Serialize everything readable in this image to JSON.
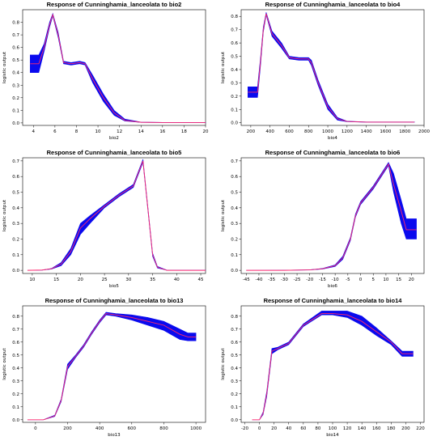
{
  "chart_data": [
    {
      "type": "line",
      "title": "Response of Cunninghamia_lanceolata to bio2",
      "xlabel": "bio2",
      "ylabel": "logistic output",
      "xlim": [
        3,
        20
      ],
      "ylim": [
        -0.02,
        0.9
      ],
      "xticks": [
        4,
        6,
        8,
        10,
        12,
        14,
        16,
        18,
        20
      ],
      "yticks": [
        0,
        0.1,
        0.2,
        0.3,
        0.4,
        0.5,
        0.6,
        0.7,
        0.8
      ],
      "mean_color": "#ff2a6d",
      "band_color": "#0a0aee",
      "mean": [
        [
          3.7,
          0.47
        ],
        [
          4.5,
          0.47
        ],
        [
          5.0,
          0.6
        ],
        [
          5.5,
          0.78
        ],
        [
          5.8,
          0.86
        ],
        [
          6.3,
          0.7
        ],
        [
          6.8,
          0.48
        ],
        [
          7.5,
          0.47
        ],
        [
          8.3,
          0.48
        ],
        [
          8.8,
          0.47
        ],
        [
          9.5,
          0.35
        ],
        [
          10.5,
          0.2
        ],
        [
          11.5,
          0.08
        ],
        [
          12.5,
          0.02
        ],
        [
          14,
          0.005
        ],
        [
          16,
          0.003
        ],
        [
          20,
          0.003
        ]
      ],
      "band_upper": [
        [
          3.7,
          0.54
        ],
        [
          4.5,
          0.54
        ],
        [
          5.0,
          0.63
        ],
        [
          5.5,
          0.8
        ],
        [
          5.8,
          0.87
        ],
        [
          6.3,
          0.72
        ],
        [
          6.8,
          0.49
        ],
        [
          7.5,
          0.48
        ],
        [
          8.3,
          0.49
        ],
        [
          8.8,
          0.48
        ],
        [
          9.5,
          0.38
        ],
        [
          10.5,
          0.23
        ],
        [
          11.5,
          0.1
        ],
        [
          12.5,
          0.03
        ],
        [
          14,
          0.006
        ],
        [
          16,
          0.004
        ],
        [
          20,
          0.004
        ]
      ],
      "band_lower": [
        [
          3.7,
          0.4
        ],
        [
          4.5,
          0.4
        ],
        [
          5.0,
          0.57
        ],
        [
          5.5,
          0.76
        ],
        [
          5.8,
          0.85
        ],
        [
          6.3,
          0.68
        ],
        [
          6.8,
          0.47
        ],
        [
          7.5,
          0.46
        ],
        [
          8.3,
          0.47
        ],
        [
          8.8,
          0.46
        ],
        [
          9.5,
          0.32
        ],
        [
          10.5,
          0.17
        ],
        [
          11.5,
          0.06
        ],
        [
          12.5,
          0.015
        ],
        [
          14,
          0.004
        ],
        [
          16,
          0.002
        ],
        [
          20,
          0.002
        ]
      ]
    },
    {
      "type": "line",
      "title": "Response of Cunninghamia_lanceolata to bio4",
      "xlabel": "bio4",
      "ylabel": "logistic output",
      "xlim": [
        100,
        2000
      ],
      "ylim": [
        -0.02,
        0.85
      ],
      "xticks": [
        200,
        400,
        600,
        800,
        1000,
        1200,
        1400,
        1600,
        1800,
        2000
      ],
      "yticks": [
        0,
        0.1,
        0.2,
        0.3,
        0.4,
        0.5,
        0.6,
        0.7,
        0.8
      ],
      "mean_color": "#ff2a6d",
      "band_color": "#0a0aee",
      "mean": [
        [
          170,
          0.23
        ],
        [
          270,
          0.23
        ],
        [
          300,
          0.45
        ],
        [
          330,
          0.7
        ],
        [
          360,
          0.82
        ],
        [
          420,
          0.67
        ],
        [
          520,
          0.58
        ],
        [
          600,
          0.49
        ],
        [
          700,
          0.48
        ],
        [
          800,
          0.48
        ],
        [
          830,
          0.45
        ],
        [
          900,
          0.3
        ],
        [
          1000,
          0.12
        ],
        [
          1100,
          0.03
        ],
        [
          1200,
          0.01
        ],
        [
          1400,
          0.005
        ],
        [
          1900,
          0.005
        ]
      ],
      "band_upper": [
        [
          170,
          0.27
        ],
        [
          270,
          0.27
        ],
        [
          300,
          0.48
        ],
        [
          330,
          0.72
        ],
        [
          360,
          0.83
        ],
        [
          420,
          0.69
        ],
        [
          520,
          0.6
        ],
        [
          600,
          0.5
        ],
        [
          700,
          0.49
        ],
        [
          800,
          0.49
        ],
        [
          830,
          0.47
        ],
        [
          900,
          0.32
        ],
        [
          1000,
          0.14
        ],
        [
          1100,
          0.04
        ],
        [
          1200,
          0.012
        ],
        [
          1400,
          0.006
        ],
        [
          1900,
          0.006
        ]
      ],
      "band_lower": [
        [
          170,
          0.19
        ],
        [
          270,
          0.19
        ],
        [
          300,
          0.42
        ],
        [
          330,
          0.68
        ],
        [
          360,
          0.81
        ],
        [
          420,
          0.65
        ],
        [
          520,
          0.56
        ],
        [
          600,
          0.48
        ],
        [
          700,
          0.47
        ],
        [
          800,
          0.47
        ],
        [
          830,
          0.43
        ],
        [
          900,
          0.28
        ],
        [
          1000,
          0.1
        ],
        [
          1100,
          0.02
        ],
        [
          1200,
          0.008
        ],
        [
          1400,
          0.004
        ],
        [
          1900,
          0.004
        ]
      ]
    },
    {
      "type": "line",
      "title": "Response of Cunninghamia_lanceolata to bio5",
      "xlabel": "bio5",
      "ylabel": "logistic output",
      "xlim": [
        8,
        46
      ],
      "ylim": [
        -0.02,
        0.72
      ],
      "xticks": [
        10,
        15,
        20,
        25,
        30,
        35,
        40,
        45
      ],
      "yticks": [
        0,
        0.1,
        0.2,
        0.3,
        0.4,
        0.5,
        0.6,
        0.7
      ],
      "mean_color": "#ff2a6d",
      "band_color": "#0a0aee",
      "mean": [
        [
          9,
          0.0
        ],
        [
          12,
          0.002
        ],
        [
          14,
          0.01
        ],
        [
          16,
          0.04
        ],
        [
          18,
          0.12
        ],
        [
          20,
          0.27
        ],
        [
          22,
          0.33
        ],
        [
          25,
          0.41
        ],
        [
          28,
          0.48
        ],
        [
          31,
          0.54
        ],
        [
          33,
          0.7
        ],
        [
          34,
          0.4
        ],
        [
          35,
          0.1
        ],
        [
          36,
          0.02
        ],
        [
          38,
          0.0
        ],
        [
          46,
          0.0
        ]
      ],
      "band_upper": [
        [
          9,
          0.0
        ],
        [
          12,
          0.002
        ],
        [
          14,
          0.012
        ],
        [
          16,
          0.05
        ],
        [
          18,
          0.14
        ],
        [
          20,
          0.3
        ],
        [
          22,
          0.35
        ],
        [
          25,
          0.42
        ],
        [
          28,
          0.49
        ],
        [
          31,
          0.55
        ],
        [
          33,
          0.71
        ],
        [
          34,
          0.41
        ],
        [
          35,
          0.11
        ],
        [
          36,
          0.025
        ],
        [
          38,
          0.001
        ],
        [
          46,
          0.001
        ]
      ],
      "band_lower": [
        [
          9,
          0.0
        ],
        [
          12,
          0.001
        ],
        [
          14,
          0.008
        ],
        [
          16,
          0.03
        ],
        [
          18,
          0.1
        ],
        [
          20,
          0.23
        ],
        [
          22,
          0.3
        ],
        [
          25,
          0.4
        ],
        [
          28,
          0.47
        ],
        [
          31,
          0.53
        ],
        [
          33,
          0.69
        ],
        [
          34,
          0.39
        ],
        [
          35,
          0.09
        ],
        [
          36,
          0.015
        ],
        [
          38,
          0.0
        ],
        [
          46,
          0.0
        ]
      ]
    },
    {
      "type": "line",
      "title": "Response of Cunninghamia_lanceolata to bio6",
      "xlabel": "bio6",
      "ylabel": "logistic output",
      "xlim": [
        -47,
        25
      ],
      "ylim": [
        -0.02,
        0.72
      ],
      "xticks": [
        -45,
        -40,
        -35,
        -30,
        -25,
        -20,
        -15,
        -10,
        -5,
        0,
        5,
        10,
        15,
        20
      ],
      "yticks": [
        0,
        0.1,
        0.2,
        0.3,
        0.4,
        0.5,
        0.6,
        0.7
      ],
      "mean_color": "#ff2a6d",
      "band_color": "#0a0aee",
      "mean": [
        [
          -45,
          0.0
        ],
        [
          -30,
          0.0
        ],
        [
          -20,
          0.003
        ],
        [
          -15,
          0.01
        ],
        [
          -10,
          0.03
        ],
        [
          -7,
          0.08
        ],
        [
          -4,
          0.2
        ],
        [
          -2,
          0.35
        ],
        [
          0,
          0.43
        ],
        [
          5,
          0.53
        ],
        [
          9,
          0.63
        ],
        [
          11,
          0.68
        ],
        [
          13,
          0.55
        ],
        [
          16,
          0.38
        ],
        [
          18,
          0.26
        ],
        [
          22,
          0.26
        ]
      ],
      "band_upper": [
        [
          -45,
          0.0
        ],
        [
          -30,
          0.001
        ],
        [
          -20,
          0.004
        ],
        [
          -15,
          0.012
        ],
        [
          -10,
          0.035
        ],
        [
          -7,
          0.09
        ],
        [
          -4,
          0.21
        ],
        [
          -2,
          0.36
        ],
        [
          0,
          0.44
        ],
        [
          5,
          0.54
        ],
        [
          9,
          0.64
        ],
        [
          11,
          0.69
        ],
        [
          13,
          0.62
        ],
        [
          16,
          0.45
        ],
        [
          18,
          0.33
        ],
        [
          22,
          0.33
        ]
      ],
      "band_lower": [
        [
          -45,
          0.0
        ],
        [
          -30,
          0.0
        ],
        [
          -20,
          0.002
        ],
        [
          -15,
          0.008
        ],
        [
          -10,
          0.025
        ],
        [
          -7,
          0.07
        ],
        [
          -4,
          0.19
        ],
        [
          -2,
          0.34
        ],
        [
          0,
          0.42
        ],
        [
          5,
          0.52
        ],
        [
          9,
          0.62
        ],
        [
          11,
          0.67
        ],
        [
          13,
          0.5
        ],
        [
          16,
          0.3
        ],
        [
          18,
          0.2
        ],
        [
          22,
          0.2
        ]
      ]
    },
    {
      "type": "line",
      "title": "Response of Cunninghamia_lanceolata to bio13",
      "xlabel": "bio13",
      "ylabel": "logistic output",
      "xlim": [
        -80,
        1060
      ],
      "ylim": [
        -0.02,
        0.88
      ],
      "xticks": [
        0,
        200,
        400,
        600,
        800,
        1000
      ],
      "yticks": [
        0,
        0.1,
        0.2,
        0.3,
        0.4,
        0.5,
        0.6,
        0.7,
        0.8
      ],
      "mean_color": "#ff2a6d",
      "band_color": "#0a0aee",
      "mean": [
        [
          -50,
          0.0
        ],
        [
          50,
          0.0
        ],
        [
          120,
          0.03
        ],
        [
          160,
          0.15
        ],
        [
          200,
          0.41
        ],
        [
          250,
          0.49
        ],
        [
          300,
          0.57
        ],
        [
          350,
          0.67
        ],
        [
          400,
          0.76
        ],
        [
          440,
          0.82
        ],
        [
          500,
          0.81
        ],
        [
          600,
          0.79
        ],
        [
          700,
          0.76
        ],
        [
          800,
          0.73
        ],
        [
          900,
          0.66
        ],
        [
          950,
          0.64
        ],
        [
          1000,
          0.64
        ]
      ],
      "band_upper": [
        [
          -50,
          0.0
        ],
        [
          50,
          0.001
        ],
        [
          120,
          0.035
        ],
        [
          160,
          0.16
        ],
        [
          200,
          0.43
        ],
        [
          250,
          0.5
        ],
        [
          300,
          0.58
        ],
        [
          350,
          0.68
        ],
        [
          400,
          0.77
        ],
        [
          440,
          0.83
        ],
        [
          500,
          0.82
        ],
        [
          600,
          0.81
        ],
        [
          700,
          0.79
        ],
        [
          800,
          0.76
        ],
        [
          900,
          0.7
        ],
        [
          950,
          0.67
        ],
        [
          1000,
          0.67
        ]
      ],
      "band_lower": [
        [
          -50,
          0.0
        ],
        [
          50,
          0.0
        ],
        [
          120,
          0.025
        ],
        [
          160,
          0.14
        ],
        [
          200,
          0.39
        ],
        [
          250,
          0.48
        ],
        [
          300,
          0.56
        ],
        [
          350,
          0.66
        ],
        [
          400,
          0.75
        ],
        [
          440,
          0.81
        ],
        [
          500,
          0.8
        ],
        [
          600,
          0.77
        ],
        [
          700,
          0.73
        ],
        [
          800,
          0.69
        ],
        [
          900,
          0.62
        ],
        [
          950,
          0.61
        ],
        [
          1000,
          0.61
        ]
      ]
    },
    {
      "type": "line",
      "title": "Response of Cunninghamia_lanceolata to bio14",
      "xlabel": "bio14",
      "ylabel": "logistic output",
      "xlim": [
        -25,
        225
      ],
      "ylim": [
        -0.02,
        0.88
      ],
      "xticks": [
        -20,
        0,
        20,
        40,
        60,
        80,
        100,
        120,
        140,
        160,
        180,
        200,
        220
      ],
      "yticks": [
        0,
        0.1,
        0.2,
        0.3,
        0.4,
        0.5,
        0.6,
        0.7,
        0.8
      ],
      "mean_color": "#ff2a6d",
      "band_color": "#0a0aee",
      "mean": [
        [
          -10,
          0.0
        ],
        [
          0,
          0.0
        ],
        [
          5,
          0.05
        ],
        [
          10,
          0.2
        ],
        [
          17,
          0.53
        ],
        [
          25,
          0.55
        ],
        [
          40,
          0.59
        ],
        [
          60,
          0.73
        ],
        [
          85,
          0.82
        ],
        [
          100,
          0.82
        ],
        [
          120,
          0.81
        ],
        [
          140,
          0.76
        ],
        [
          160,
          0.68
        ],
        [
          180,
          0.6
        ],
        [
          195,
          0.51
        ],
        [
          210,
          0.51
        ]
      ],
      "band_upper": [
        [
          -10,
          0.0
        ],
        [
          0,
          0.001
        ],
        [
          5,
          0.06
        ],
        [
          10,
          0.22
        ],
        [
          17,
          0.55
        ],
        [
          25,
          0.56
        ],
        [
          40,
          0.6
        ],
        [
          60,
          0.74
        ],
        [
          85,
          0.84
        ],
        [
          100,
          0.84
        ],
        [
          120,
          0.84
        ],
        [
          140,
          0.8
        ],
        [
          160,
          0.71
        ],
        [
          180,
          0.61
        ],
        [
          195,
          0.53
        ],
        [
          210,
          0.53
        ]
      ],
      "band_lower": [
        [
          -10,
          0.0
        ],
        [
          0,
          0.0
        ],
        [
          5,
          0.04
        ],
        [
          10,
          0.18
        ],
        [
          17,
          0.51
        ],
        [
          25,
          0.54
        ],
        [
          40,
          0.58
        ],
        [
          60,
          0.72
        ],
        [
          85,
          0.81
        ],
        [
          100,
          0.81
        ],
        [
          120,
          0.79
        ],
        [
          140,
          0.73
        ],
        [
          160,
          0.65
        ],
        [
          180,
          0.58
        ],
        [
          195,
          0.49
        ],
        [
          210,
          0.49
        ]
      ]
    }
  ]
}
